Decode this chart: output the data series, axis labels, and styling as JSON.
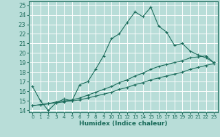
{
  "xlabel": "Humidex (Indice chaleur)",
  "xlim": [
    -0.5,
    23.5
  ],
  "ylim": [
    13.8,
    25.4
  ],
  "yticks": [
    14,
    15,
    16,
    17,
    18,
    19,
    20,
    21,
    22,
    23,
    24,
    25
  ],
  "xticks": [
    0,
    1,
    2,
    3,
    4,
    5,
    6,
    7,
    8,
    9,
    10,
    11,
    12,
    13,
    14,
    15,
    16,
    17,
    18,
    19,
    20,
    21,
    22,
    23
  ],
  "bg_color": "#b8ddd8",
  "line_color": "#1a6b5a",
  "grid_color": "#ffffff",
  "line1_x": [
    0,
    1,
    2,
    3,
    4,
    5,
    6,
    7,
    8,
    9,
    10,
    11,
    12,
    13,
    14,
    15,
    16,
    17,
    18,
    19,
    20,
    21,
    22,
    23
  ],
  "line1_y": [
    16.5,
    15.0,
    14.0,
    14.8,
    15.2,
    15.0,
    16.7,
    17.0,
    18.3,
    19.7,
    21.5,
    22.0,
    23.2,
    24.3,
    23.8,
    24.8,
    22.8,
    22.2,
    20.8,
    21.0,
    20.2,
    19.8,
    19.5,
    19.0
  ],
  "line2_x": [
    0,
    1,
    2,
    3,
    4,
    5,
    6,
    7,
    8,
    9,
    10,
    11,
    12,
    13,
    14,
    15,
    16,
    17,
    18,
    19,
    20,
    21,
    22,
    23
  ],
  "line2_y": [
    14.5,
    14.6,
    14.7,
    14.9,
    15.0,
    15.1,
    15.3,
    15.6,
    15.9,
    16.2,
    16.5,
    16.9,
    17.2,
    17.6,
    17.9,
    18.3,
    18.6,
    18.8,
    19.0,
    19.2,
    19.5,
    19.6,
    19.7,
    19.0
  ],
  "line3_x": [
    0,
    1,
    2,
    3,
    4,
    5,
    6,
    7,
    8,
    9,
    10,
    11,
    12,
    13,
    14,
    15,
    16,
    17,
    18,
    19,
    20,
    21,
    22,
    23
  ],
  "line3_y": [
    14.5,
    14.6,
    14.7,
    14.8,
    14.9,
    15.0,
    15.1,
    15.3,
    15.5,
    15.7,
    15.9,
    16.2,
    16.4,
    16.7,
    16.9,
    17.2,
    17.4,
    17.6,
    17.8,
    18.0,
    18.3,
    18.5,
    18.7,
    18.9
  ]
}
